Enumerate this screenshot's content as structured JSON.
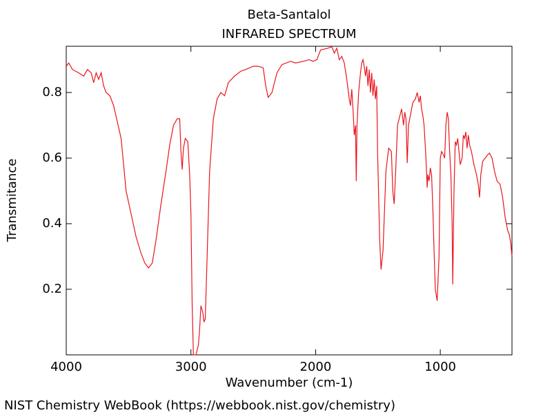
{
  "chart_data": {
    "type": "line",
    "title": "Beta-Santalol",
    "subtitle": "INFRARED SPECTRUM",
    "x_label": "Wavenumber (cm-1)",
    "y_label": "Transmitance",
    "source": "NIST Chemistry WebBook (https://webbook.nist.gov/chemistry)",
    "color": "#e8141c",
    "xlim": [
      4000,
      425
    ],
    "ylim": [
      0,
      0.941
    ],
    "xticks": [
      4000,
      3000,
      2000,
      1000
    ],
    "yticks": [
      0.2,
      0.4,
      0.6,
      0.8
    ],
    "x": [
      4000,
      3980,
      3950,
      3900,
      3860,
      3830,
      3800,
      3780,
      3760,
      3740,
      3720,
      3700,
      3680,
      3650,
      3620,
      3590,
      3560,
      3540,
      3520,
      3480,
      3440,
      3400,
      3370,
      3340,
      3310,
      3280,
      3240,
      3200,
      3170,
      3140,
      3110,
      3090,
      3080,
      3070,
      3060,
      3045,
      3025,
      3010,
      3000,
      2990,
      2980,
      2960,
      2940,
      2930,
      2920,
      2905,
      2895,
      2885,
      2870,
      2850,
      2820,
      2790,
      2760,
      2730,
      2700,
      2650,
      2600,
      2560,
      2500,
      2460,
      2420,
      2400,
      2380,
      2350,
      2310,
      2270,
      2200,
      2160,
      2100,
      2050,
      2020,
      1990,
      1960,
      1900,
      1870,
      1850,
      1830,
      1810,
      1790,
      1770,
      1750,
      1730,
      1720,
      1710,
      1700,
      1690,
      1680,
      1674,
      1668,
      1655,
      1640,
      1630,
      1620,
      1610,
      1600,
      1590,
      1580,
      1570,
      1560,
      1550,
      1540,
      1530,
      1520,
      1510,
      1503,
      1486,
      1475,
      1459,
      1436,
      1414,
      1392,
      1381,
      1370,
      1359,
      1343,
      1330,
      1310,
      1295,
      1285,
      1275,
      1265,
      1255,
      1240,
      1220,
      1200,
      1185,
      1170,
      1160,
      1150,
      1140,
      1130,
      1115,
      1105,
      1100,
      1090,
      1080,
      1070,
      1060,
      1050,
      1040,
      1025,
      1010,
      1000,
      990,
      975,
      965,
      955,
      945,
      935,
      925,
      915,
      905,
      900,
      890,
      880,
      870,
      860,
      850,
      840,
      825,
      815,
      805,
      795,
      785,
      775,
      765,
      750,
      730,
      710,
      695,
      685,
      675,
      660,
      640,
      620,
      605,
      585,
      565,
      545,
      520,
      500,
      480,
      460,
      445,
      435,
      425
    ],
    "values": [
      0.88,
      0.89,
      0.87,
      0.86,
      0.85,
      0.87,
      0.86,
      0.83,
      0.86,
      0.84,
      0.86,
      0.82,
      0.8,
      0.79,
      0.76,
      0.71,
      0.66,
      0.58,
      0.5,
      0.43,
      0.36,
      0.31,
      0.28,
      0.265,
      0.28,
      0.35,
      0.46,
      0.56,
      0.64,
      0.7,
      0.72,
      0.72,
      0.62,
      0.565,
      0.63,
      0.66,
      0.65,
      0.55,
      0.43,
      0.15,
      0.0,
      0.0,
      0.03,
      0.08,
      0.15,
      0.13,
      0.1,
      0.11,
      0.3,
      0.56,
      0.72,
      0.78,
      0.8,
      0.79,
      0.83,
      0.85,
      0.865,
      0.87,
      0.88,
      0.88,
      0.875,
      0.82,
      0.785,
      0.8,
      0.86,
      0.885,
      0.895,
      0.89,
      0.895,
      0.9,
      0.895,
      0.9,
      0.93,
      0.935,
      0.94,
      0.92,
      0.935,
      0.9,
      0.91,
      0.89,
      0.84,
      0.78,
      0.76,
      0.81,
      0.75,
      0.67,
      0.7,
      0.53,
      0.7,
      0.8,
      0.86,
      0.89,
      0.9,
      0.88,
      0.85,
      0.88,
      0.82,
      0.87,
      0.8,
      0.86,
      0.79,
      0.84,
      0.78,
      0.82,
      0.62,
      0.35,
      0.26,
      0.32,
      0.56,
      0.63,
      0.62,
      0.5,
      0.46,
      0.55,
      0.7,
      0.72,
      0.75,
      0.7,
      0.74,
      0.72,
      0.585,
      0.7,
      0.73,
      0.77,
      0.78,
      0.8,
      0.77,
      0.79,
      0.75,
      0.73,
      0.7,
      0.6,
      0.51,
      0.55,
      0.53,
      0.57,
      0.55,
      0.45,
      0.32,
      0.2,
      0.165,
      0.3,
      0.6,
      0.62,
      0.61,
      0.6,
      0.7,
      0.74,
      0.72,
      0.62,
      0.55,
      0.4,
      0.215,
      0.5,
      0.65,
      0.64,
      0.66,
      0.62,
      0.58,
      0.6,
      0.67,
      0.66,
      0.68,
      0.63,
      0.67,
      0.64,
      0.62,
      0.58,
      0.55,
      0.52,
      0.48,
      0.55,
      0.59,
      0.6,
      0.61,
      0.615,
      0.6,
      0.56,
      0.53,
      0.52,
      0.48,
      0.42,
      0.38,
      0.365,
      0.34,
      0.3
    ]
  }
}
